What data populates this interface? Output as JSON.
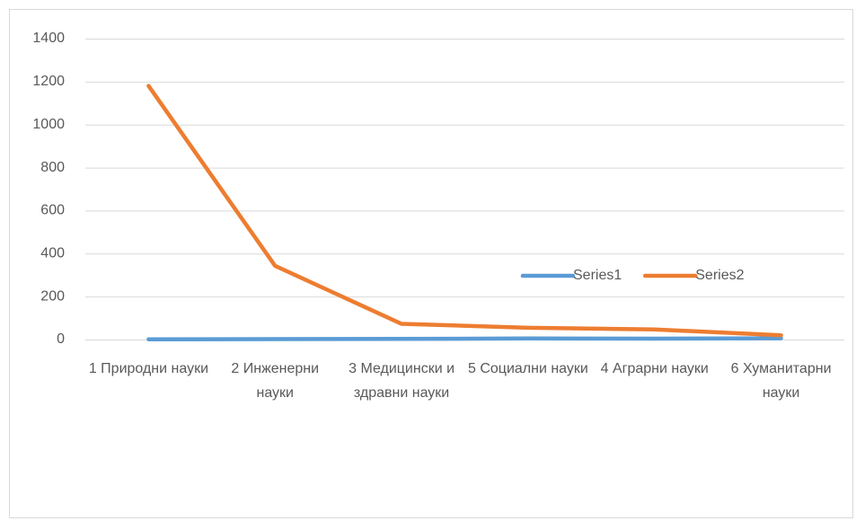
{
  "chart_data": {
    "type": "line",
    "categories": [
      "1 Природни науки",
      "2 Инженерни науки",
      "3 Медицински и здравни науки",
      "5 Социални науки",
      "4 Аграрни науки",
      "6 Хуманитарни науки"
    ],
    "series": [
      {
        "name": "Series1",
        "color": "#5b9bd5",
        "values": [
          1,
          2,
          3,
          5,
          4,
          6
        ]
      },
      {
        "name": "Series2",
        "color": "#ed7d31",
        "values": [
          1180,
          343,
          73,
          55,
          47,
          20
        ]
      }
    ],
    "ylim": [
      0,
      1400
    ],
    "yticks": [
      0,
      200,
      400,
      600,
      800,
      1000,
      1200,
      1400
    ],
    "grid": true,
    "legend": "right"
  }
}
